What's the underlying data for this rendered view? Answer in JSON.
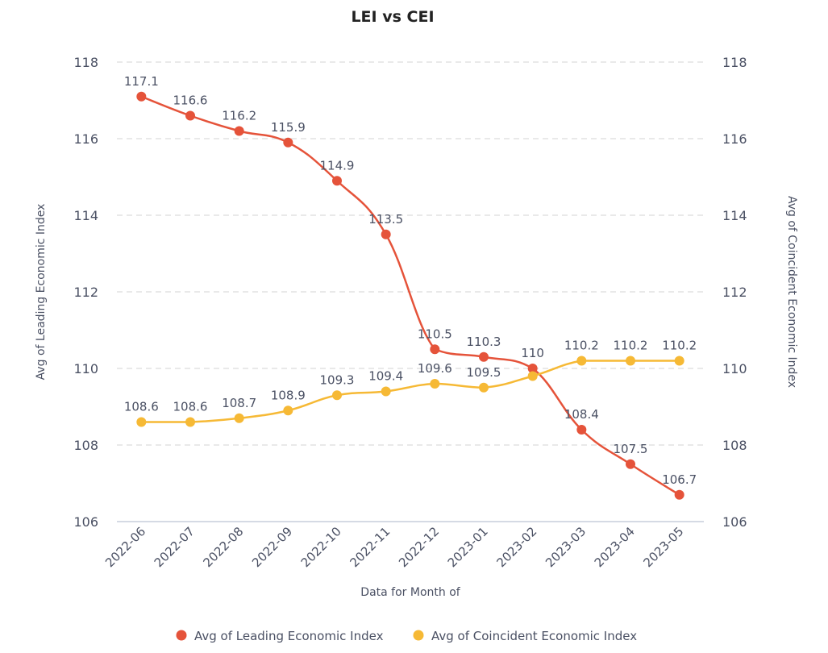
{
  "chart_data": {
    "type": "line",
    "title": "LEI vs CEI",
    "xlabel": "Data for Month of",
    "ylabel": "Avg of Leading Economic Index",
    "y2label": "Avg of Coincident Economic Index",
    "categories": [
      "2022-06",
      "2022-07",
      "2022-08",
      "2022-09",
      "2022-10",
      "2022-11",
      "2022-12",
      "2023-01",
      "2023-02",
      "2023-03",
      "2023-04",
      "2023-05"
    ],
    "ylim": [
      106,
      118
    ],
    "y2lim": [
      106,
      118
    ],
    "yticks": [
      106,
      108,
      110,
      112,
      114,
      116,
      118
    ],
    "grid": true,
    "legend_position": "bottom",
    "series": [
      {
        "name": "Avg of Leading Economic Index",
        "color": "#e5533a",
        "axis": "left",
        "values": [
          117.1,
          116.6,
          116.2,
          115.9,
          114.9,
          113.5,
          110.5,
          110.3,
          110.0,
          108.4,
          107.5,
          106.7
        ],
        "labels": [
          "117.1",
          "116.6",
          "116.2",
          "115.9",
          "114.9",
          "113.5",
          "110.5",
          "110.3",
          "110",
          "108.4",
          "107.5",
          "106.7"
        ]
      },
      {
        "name": "Avg of Coincident Economic Index",
        "color": "#f6b935",
        "axis": "right",
        "values": [
          108.6,
          108.6,
          108.7,
          108.9,
          109.3,
          109.4,
          109.6,
          109.5,
          109.8,
          110.2,
          110.2,
          110.2
        ],
        "labels": [
          "108.6",
          "108.6",
          "108.7",
          "108.9",
          "109.3",
          "109.4",
          "109.6",
          "109.5",
          "",
          "110.2",
          "110.2",
          "110.2"
        ]
      }
    ]
  }
}
